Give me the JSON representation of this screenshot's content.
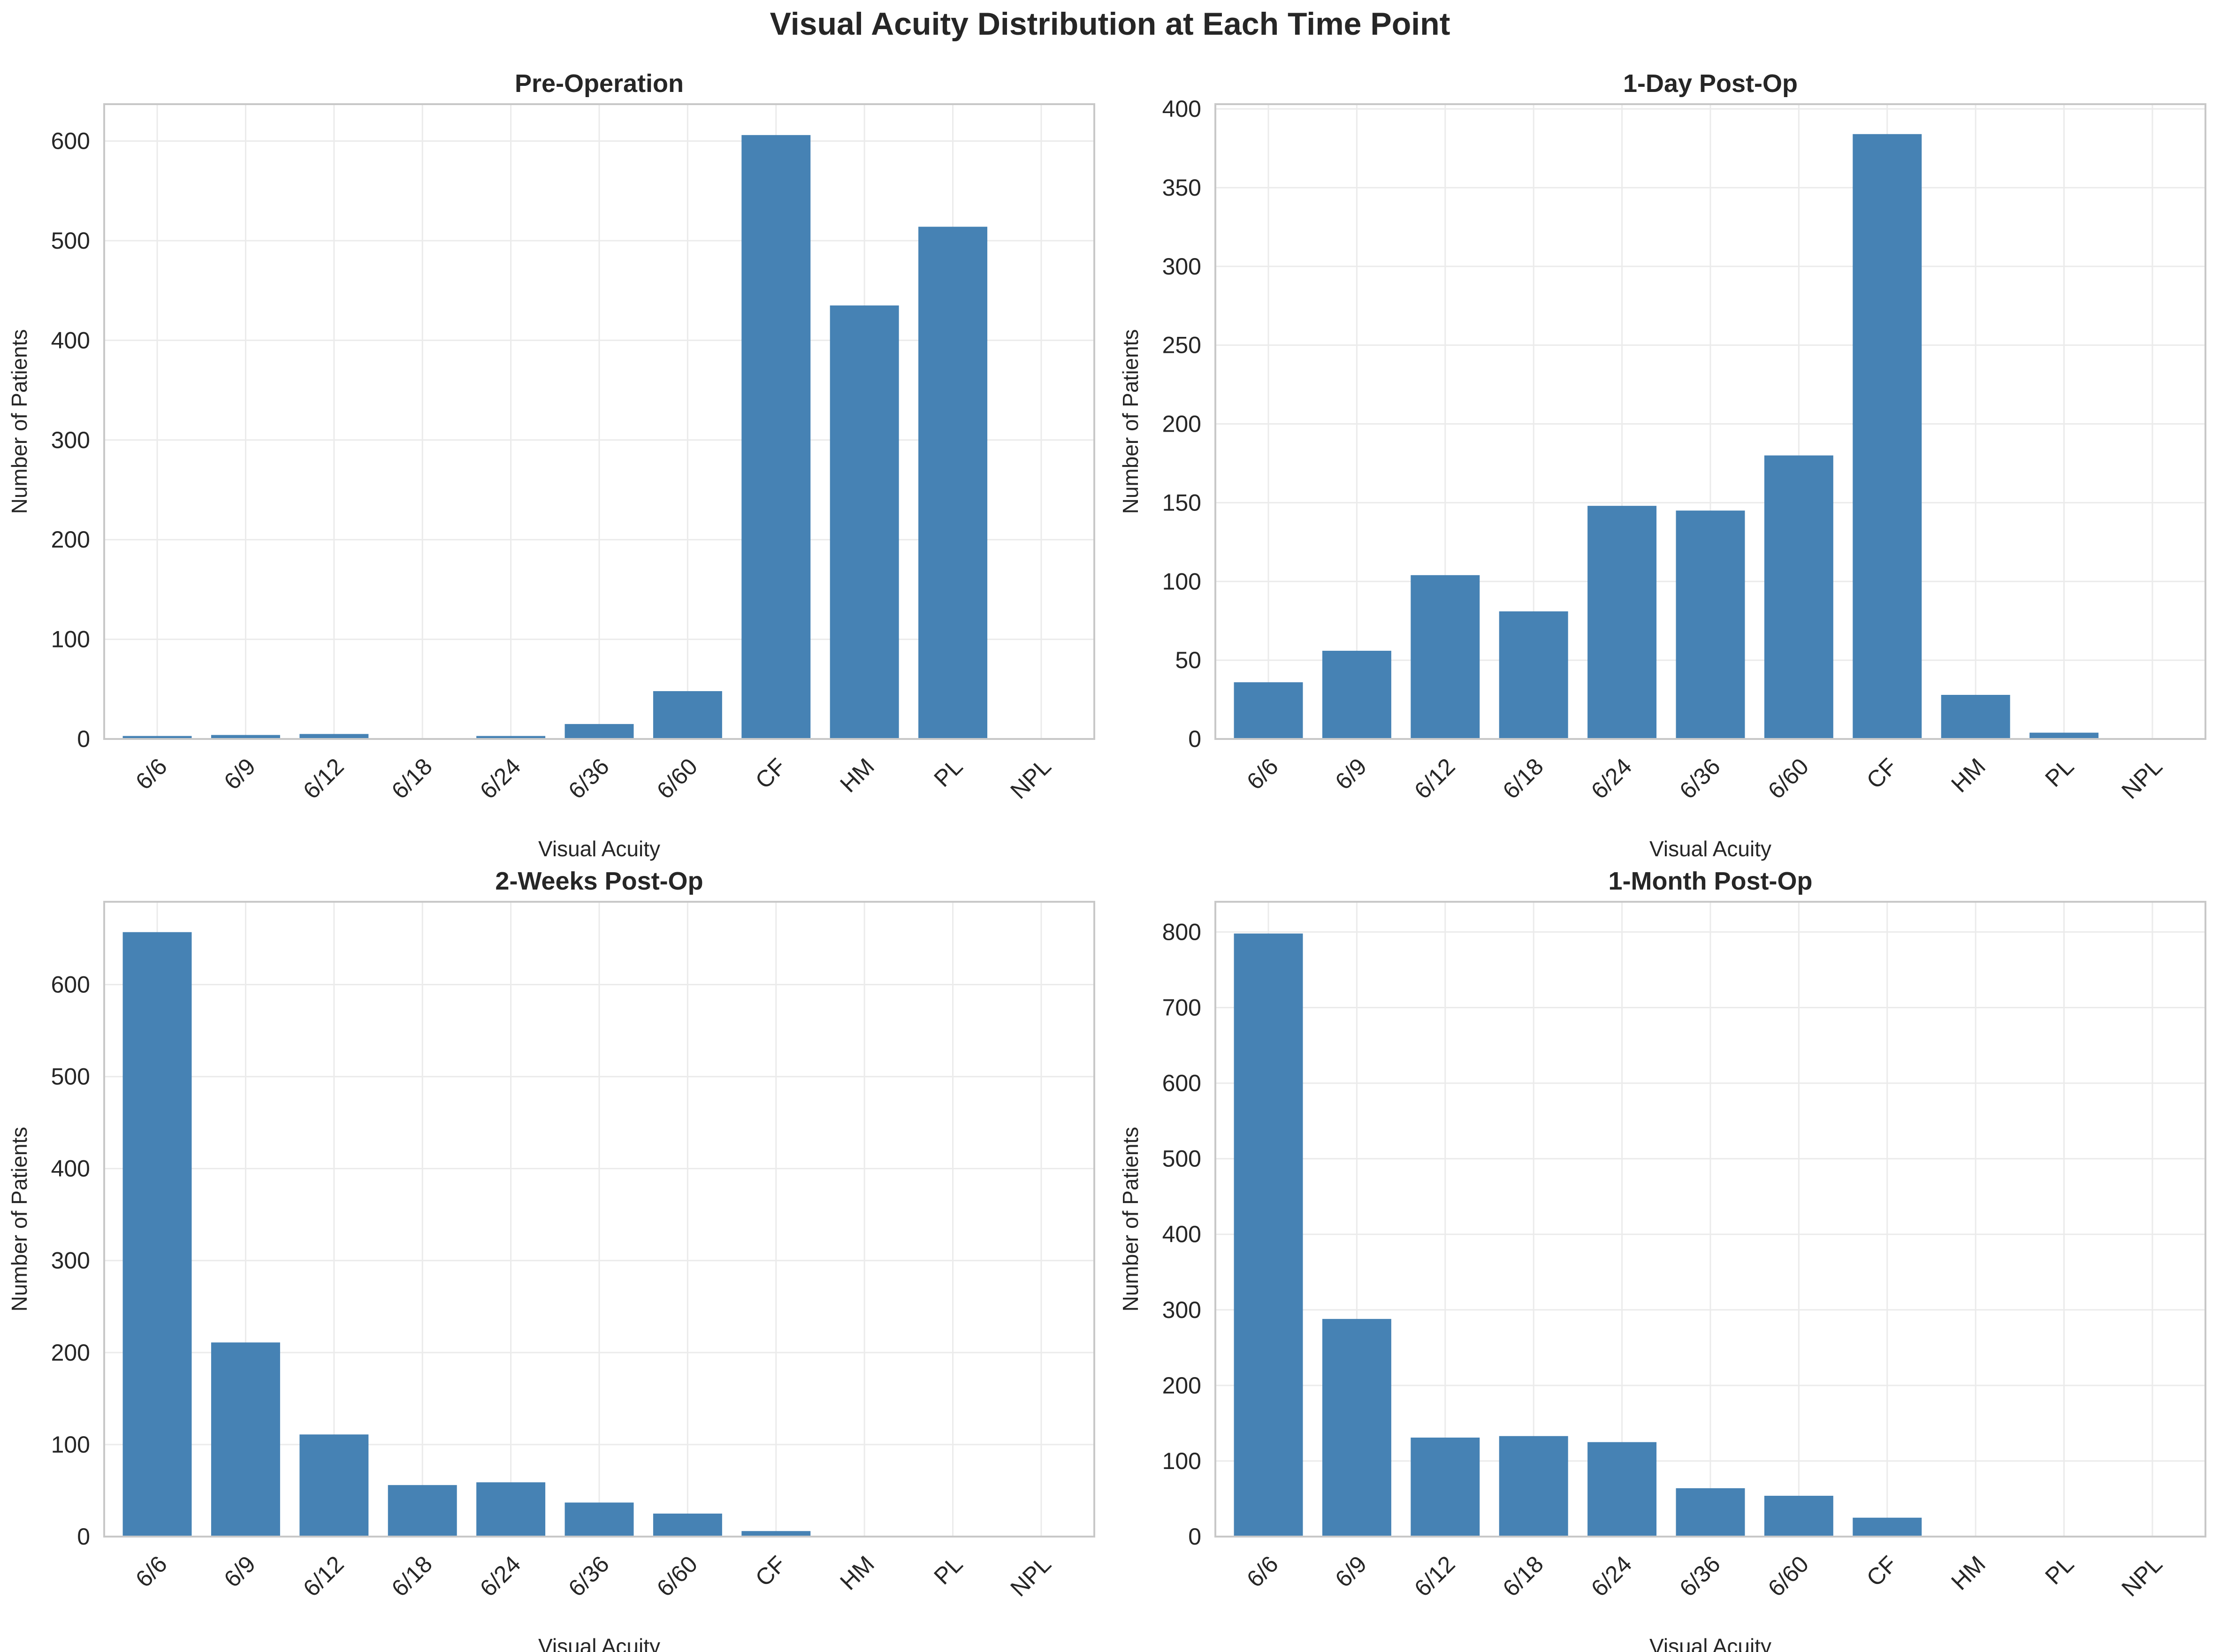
{
  "figure_title": "Visual Acuity Distribution at Each Time Point",
  "bar_color": "#4682b4",
  "chart_data": [
    {
      "type": "bar",
      "title": "Pre-Operation",
      "xlabel": "Visual Acuity",
      "ylabel": "Number of Patients",
      "categories": [
        "6/6",
        "6/9",
        "6/12",
        "6/18",
        "6/24",
        "6/36",
        "6/60",
        "CF",
        "HM",
        "PL",
        "NPL"
      ],
      "values": [
        3,
        4,
        5,
        0,
        3,
        15,
        48,
        606,
        435,
        514,
        0
      ],
      "ylim": [
        0,
        637
      ],
      "yticks": [
        0,
        100,
        200,
        300,
        400,
        500,
        600
      ],
      "grid": true
    },
    {
      "type": "bar",
      "title": "1-Day Post-Op",
      "xlabel": "Visual Acuity",
      "ylabel": "Number of Patients",
      "categories": [
        "6/6",
        "6/9",
        "6/12",
        "6/18",
        "6/24",
        "6/36",
        "6/60",
        "CF",
        "HM",
        "PL",
        "NPL"
      ],
      "values": [
        36,
        56,
        104,
        81,
        148,
        145,
        180,
        384,
        28,
        4,
        0
      ],
      "ylim": [
        0,
        403
      ],
      "yticks": [
        0,
        50,
        100,
        150,
        200,
        250,
        300,
        350,
        400
      ],
      "grid": true
    },
    {
      "type": "bar",
      "title": "2-Weeks Post-Op",
      "xlabel": "Visual Acuity",
      "ylabel": "Number of Patients",
      "categories": [
        "6/6",
        "6/9",
        "6/12",
        "6/18",
        "6/24",
        "6/36",
        "6/60",
        "CF",
        "HM",
        "PL",
        "NPL"
      ],
      "values": [
        657,
        211,
        111,
        56,
        59,
        37,
        25,
        6,
        0,
        0,
        0
      ],
      "ylim": [
        0,
        690
      ],
      "yticks": [
        0,
        100,
        200,
        300,
        400,
        500,
        600
      ],
      "grid": true
    },
    {
      "type": "bar",
      "title": "1-Month Post-Op",
      "xlabel": "Visual Acuity",
      "ylabel": "Number of Patients",
      "categories": [
        "6/6",
        "6/9",
        "6/12",
        "6/18",
        "6/24",
        "6/36",
        "6/60",
        "CF",
        "HM",
        "PL",
        "NPL"
      ],
      "values": [
        798,
        288,
        131,
        133,
        125,
        64,
        54,
        25,
        0,
        0,
        0
      ],
      "ylim": [
        0,
        840
      ],
      "yticks": [
        0,
        100,
        200,
        300,
        400,
        500,
        600,
        700,
        800
      ],
      "grid": true
    }
  ]
}
